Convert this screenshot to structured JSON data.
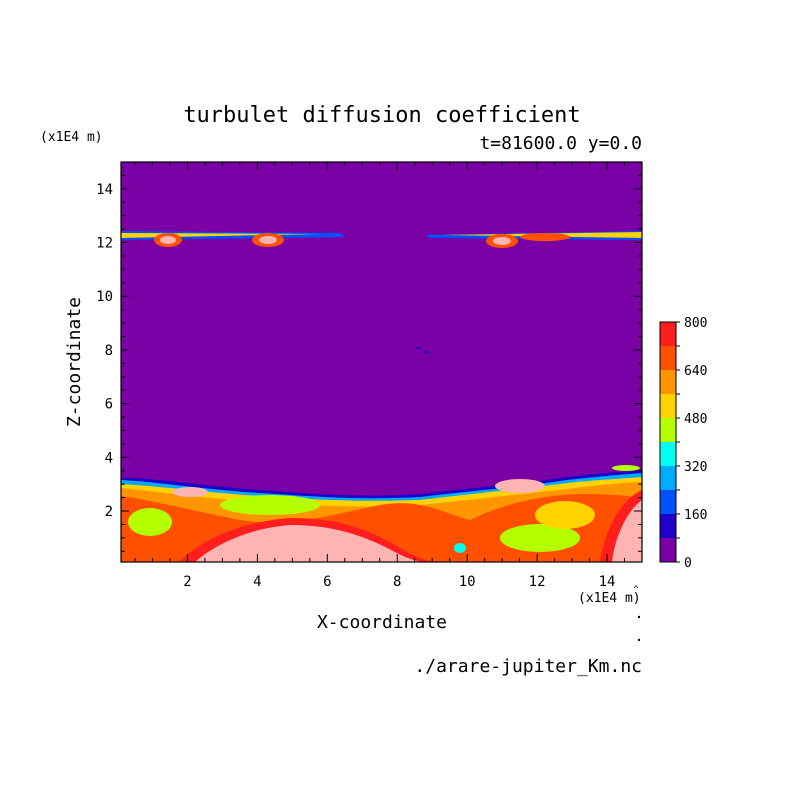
{
  "chart_data": {
    "type": "heatmap",
    "title": "turbulet diffusion coefficient",
    "subtitle": "t=81600.0 y=0.0",
    "xlabel": "X-coordinate",
    "ylabel": "Z-coordinate",
    "x_unit": "(x1E4 m)",
    "y_unit": "(x1E4 m)",
    "xlim": [
      0.1,
      15.0
    ],
    "ylim": [
      0.1,
      15.0
    ],
    "x_ticks": [
      2,
      4,
      6,
      8,
      10,
      12,
      14
    ],
    "y_ticks": [
      2,
      4,
      6,
      8,
      10,
      12,
      14
    ],
    "colorbar": {
      "levels": [
        0,
        80,
        160,
        240,
        320,
        400,
        480,
        560,
        640,
        720,
        800
      ],
      "tick_labels": [
        "0",
        "160",
        "320",
        "480",
        "640",
        "800"
      ],
      "colors": [
        "#7a00a6",
        "#1e00c8",
        "#0050ff",
        "#00aaff",
        "#00ffee",
        "#b4ff00",
        "#ffd200",
        "#ff9600",
        "#ff5000",
        "#ff1e1e",
        "#ffb4b4"
      ]
    },
    "footer": "./arare-jupiter_Km.nc"
  },
  "icons": {
    "colorbar_tip": "caret-up-icon",
    "marker": "dot-icon"
  }
}
